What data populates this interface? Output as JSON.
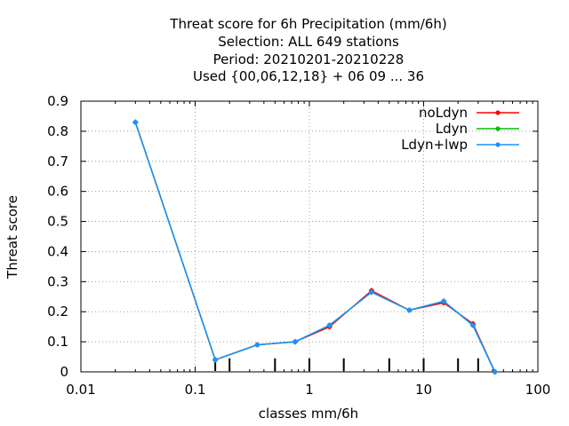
{
  "chart_data": {
    "type": "line",
    "title": [
      "Threat score  for 6h Precipitation (mm/6h)",
      "Selection: ALL    649 stations",
      "Period: 20210201-20210228",
      "Used {00,06,12,18} + 06 09 ... 36"
    ],
    "xlabel": "classes mm/6h",
    "ylabel": "Threat score",
    "x_scale": "log",
    "xlim": [
      0.01,
      100
    ],
    "ylim": [
      0,
      0.9
    ],
    "x_ticks": [
      0.01,
      0.1,
      1,
      10,
      100
    ],
    "x_tick_labels": [
      "0.01",
      "0.1",
      "1",
      "10",
      "100"
    ],
    "y_ticks": [
      0,
      0.1,
      0.2,
      0.3,
      0.4,
      0.5,
      0.6,
      0.7,
      0.8,
      0.9
    ],
    "y_tick_labels": [
      "0",
      "0.1",
      "0.2",
      "0.3",
      "0.4",
      "0.5",
      "0.6",
      "0.7",
      "0.8",
      "0.9"
    ],
    "class_markers": [
      0.15,
      0.2,
      0.5,
      1,
      2,
      5,
      10,
      20,
      30
    ],
    "grid": true,
    "legend_position": "top-right",
    "x": [
      0.03,
      0.15,
      0.35,
      0.75,
      1.5,
      3.5,
      7.5,
      15,
      27,
      42
    ],
    "series": [
      {
        "name": "noLdyn",
        "color": "#ff0000",
        "values": [
          0.83,
          0.04,
          0.09,
          0.1,
          0.15,
          0.27,
          0.205,
          0.23,
          0.16,
          0.0
        ]
      },
      {
        "name": "Ldyn",
        "color": "#00c000",
        "values": [
          0.83,
          0.04,
          0.09,
          0.1,
          0.155,
          0.265,
          0.205,
          0.235,
          0.155,
          0.0
        ]
      },
      {
        "name": "Ldyn+lwp",
        "color": "#1e90ff",
        "values": [
          0.83,
          0.04,
          0.09,
          0.1,
          0.155,
          0.265,
          0.205,
          0.235,
          0.155,
          0.0
        ]
      }
    ]
  }
}
